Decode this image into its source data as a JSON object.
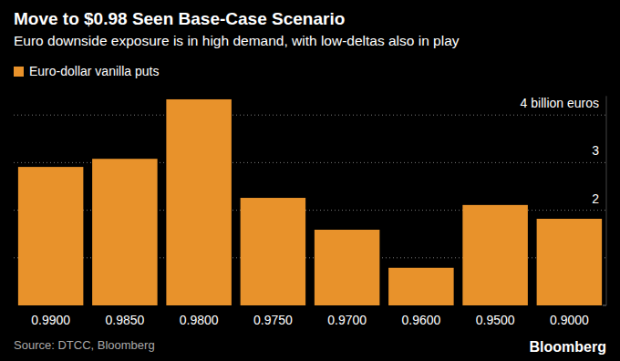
{
  "chart_data": {
    "type": "bar",
    "title": "Move to $0.98 Seen Base-Case Scenario",
    "subtitle": "Euro downside exposure is in high demand, with low-deltas also in play",
    "categories": [
      "0.9900",
      "0.9850",
      "0.9800",
      "0.9750",
      "0.9700",
      "0.9600",
      "0.9500",
      "0.9000"
    ],
    "series": [
      {
        "name": "Euro-dollar vanilla puts",
        "color": "#e8922b",
        "values": [
          2.91,
          3.08,
          4.33,
          2.26,
          1.59,
          0.79,
          2.11,
          1.82
        ]
      }
    ],
    "ylim": [
      0,
      4.4
    ],
    "yticks": [
      0,
      1,
      2,
      3,
      {
        "value": 4,
        "label": "4 billion euros"
      }
    ],
    "grid": true,
    "legend": "top-left",
    "source": "Source: DTCC, Bloomberg",
    "brand": "Bloomberg"
  }
}
